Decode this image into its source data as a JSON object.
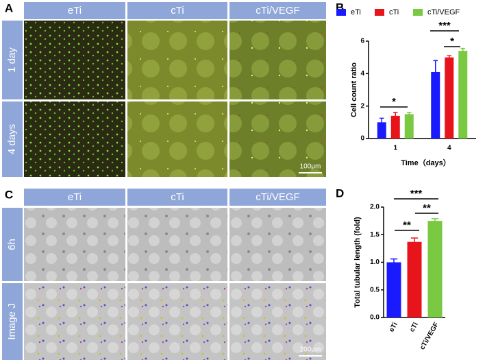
{
  "panels": {
    "A": {
      "label": "A",
      "columns": [
        "eTi",
        "cTi",
        "cTi/VEGF"
      ],
      "rows": [
        "1 day",
        "4 days"
      ],
      "scale_bar": "100μm"
    },
    "C": {
      "label": "C",
      "columns": [
        "eTi",
        "cTi",
        "cTi/VEGF"
      ],
      "rows": [
        "6h",
        "Image J"
      ],
      "scale_bar": "200μm"
    }
  },
  "chart_data": [
    {
      "type": "bar",
      "label": "B",
      "ylabel": "Cell count ratio",
      "xlabel": "Time（days）",
      "categories": [
        "1",
        "4"
      ],
      "ylim": [
        0,
        6
      ],
      "yticks": [
        0,
        2,
        4,
        6
      ],
      "series": [
        {
          "name": "eTi",
          "color": "#1a1aff",
          "values": [
            1.0,
            4.1
          ],
          "errors": [
            0.25,
            0.7
          ]
        },
        {
          "name": "cTi",
          "color": "#e8141b",
          "values": [
            1.4,
            5.0
          ],
          "errors": [
            0.2,
            0.1
          ]
        },
        {
          "name": "cTi/VEGF",
          "color": "#7ac943",
          "values": [
            1.5,
            5.4
          ],
          "errors": [
            0.1,
            0.15
          ]
        }
      ],
      "annotations": [
        "*",
        "***",
        "*"
      ]
    },
    {
      "type": "bar",
      "label": "D",
      "ylabel": "Total tubular length (fold)",
      "categories": [
        "eTi",
        "cTi",
        "cTi/VEGF"
      ],
      "ylim": [
        0,
        2
      ],
      "yticks": [
        {
          "value": 0,
          "label": "0.0"
        },
        0.5,
        {
          "value": 1,
          "label": "1.0"
        },
        1.5,
        {
          "value": 2,
          "label": "2.0"
        }
      ],
      "colors": [
        "#1a1aff",
        "#e8141b",
        "#7ac943"
      ],
      "values": [
        1.0,
        1.37,
        1.75
      ],
      "errors": [
        0.06,
        0.07,
        0.04
      ],
      "annotations": [
        "***",
        "**",
        "**"
      ]
    }
  ]
}
